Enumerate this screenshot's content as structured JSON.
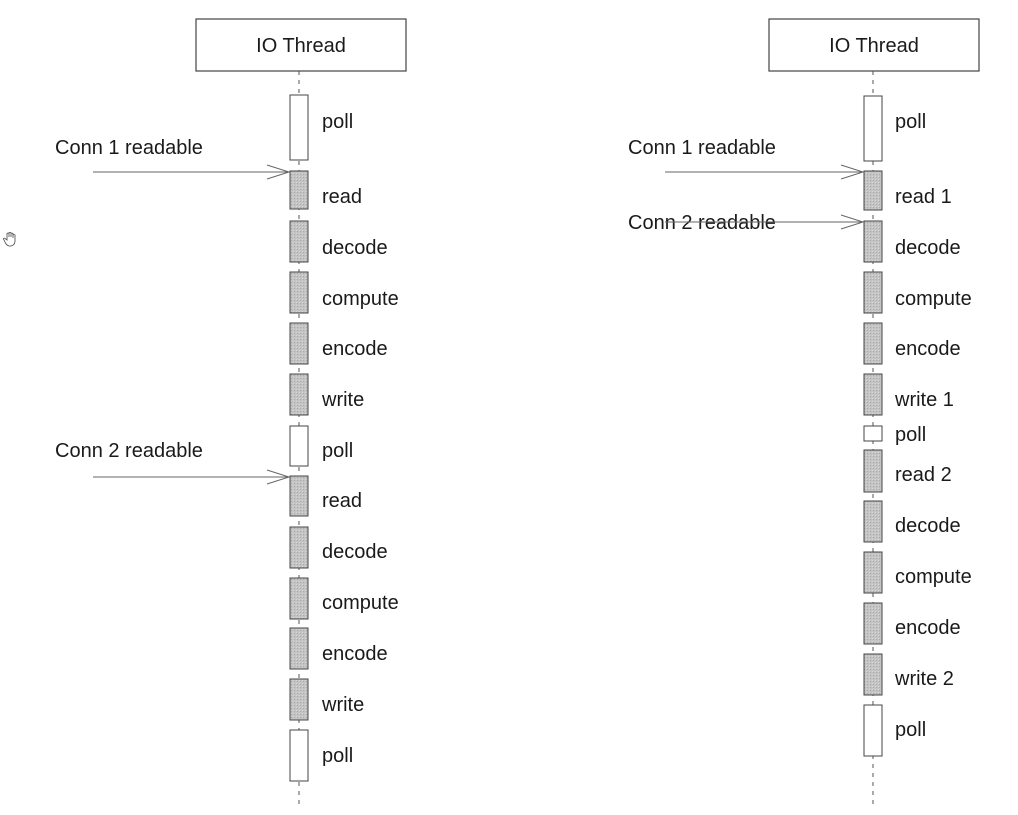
{
  "colors": {
    "active": "#bdbdbd",
    "idle": "#ffffff",
    "stroke": "#444444",
    "arrow": "#666666"
  },
  "icons": {
    "cursor": "hand-cursor-icon"
  },
  "diagrams": [
    {
      "header": "IO Thread",
      "events": [
        {
          "label": "Conn 1 readable",
          "target": 1
        },
        {
          "label": "Conn 2 readable",
          "target": 7
        }
      ],
      "steps": [
        {
          "label": "poll",
          "state": "idle"
        },
        {
          "label": "read",
          "state": "active"
        },
        {
          "label": "decode",
          "state": "active"
        },
        {
          "label": "compute",
          "state": "active"
        },
        {
          "label": "encode",
          "state": "active"
        },
        {
          "label": "write",
          "state": "active"
        },
        {
          "label": "poll",
          "state": "idle"
        },
        {
          "label": "read",
          "state": "active"
        },
        {
          "label": "decode",
          "state": "active"
        },
        {
          "label": "compute",
          "state": "active"
        },
        {
          "label": "encode",
          "state": "active"
        },
        {
          "label": "write",
          "state": "active"
        },
        {
          "label": "poll",
          "state": "idle"
        }
      ]
    },
    {
      "header": "IO Thread",
      "events": [
        {
          "label": "Conn 1 readable",
          "target": 1
        },
        {
          "label": "Conn 2 readable",
          "target": 2
        }
      ],
      "steps": [
        {
          "label": "poll",
          "state": "idle"
        },
        {
          "label": "read 1",
          "state": "active"
        },
        {
          "label": "decode",
          "state": "active"
        },
        {
          "label": "compute",
          "state": "active"
        },
        {
          "label": "encode",
          "state": "active"
        },
        {
          "label": "write 1",
          "state": "active"
        },
        {
          "label": "poll",
          "state": "idle"
        },
        {
          "label": "read 2",
          "state": "active"
        },
        {
          "label": "decode",
          "state": "active"
        },
        {
          "label": "compute",
          "state": "active"
        },
        {
          "label": "encode",
          "state": "active"
        },
        {
          "label": "write 2",
          "state": "active"
        },
        {
          "label": "poll",
          "state": "idle"
        }
      ]
    }
  ]
}
